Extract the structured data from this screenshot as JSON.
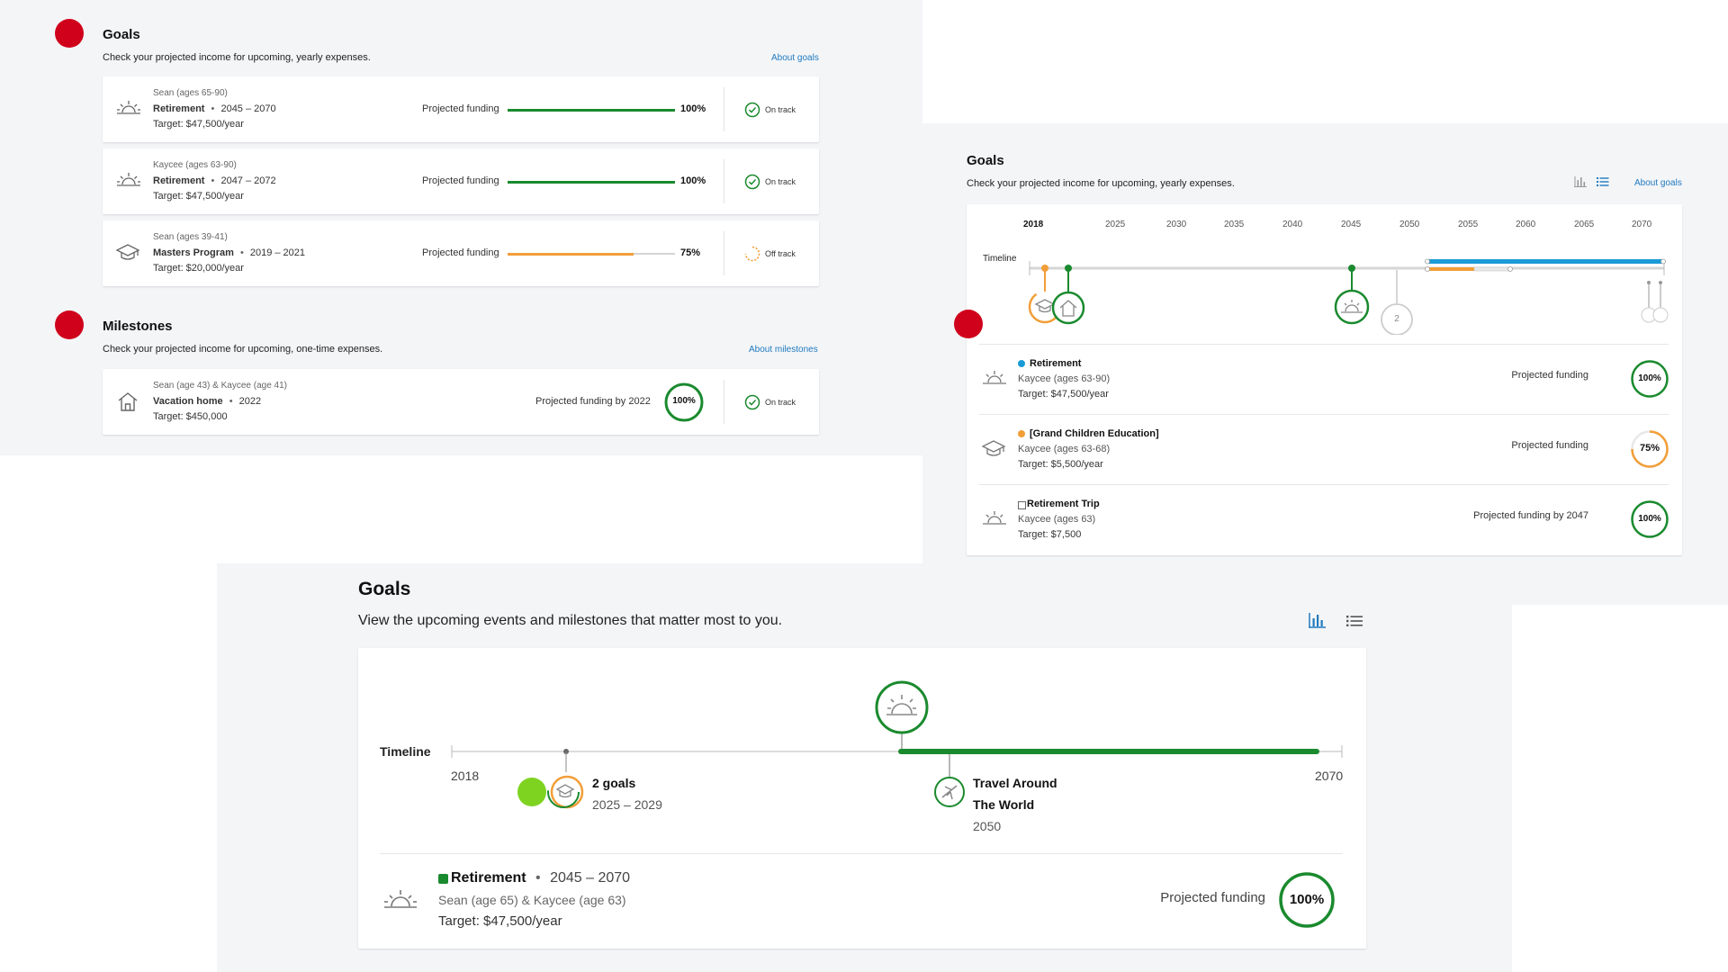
{
  "colors": {
    "green": "#1a8a2e",
    "orange": "#f29e38",
    "blue": "#1a9ad6",
    "red": "#d0021b",
    "link": "#1f7ac0",
    "lime": "#7ed321"
  },
  "panel1": {
    "goals_title": "Goals",
    "goals_subtitle": "Check your projected income for upcoming, yearly expenses.",
    "about_goals": "About goals",
    "goals": [
      {
        "person": "Sean (ages 65-90)",
        "name": "Retirement",
        "years": "2045 – 2070",
        "target": "Target: $47,500/year",
        "funding_label": "Projected funding",
        "progress": 100,
        "pct": "100%",
        "status": "On track",
        "icon": "sunrise-icon"
      },
      {
        "person": "Kaycee (ages 63-90)",
        "name": "Retirement",
        "years": "2047 – 2072",
        "target": "Target: $47,500/year",
        "funding_label": "Projected funding",
        "progress": 100,
        "pct": "100%",
        "status": "On track",
        "icon": "sunrise-icon"
      },
      {
        "person": "Sean (ages 39-41)",
        "name": "Masters Program",
        "years": "2019 – 2021",
        "target": "Target: $20,000/year",
        "funding_label": "Projected funding",
        "progress": 75,
        "pct": "75%",
        "status": "Off track",
        "icon": "graduation-cap-icon"
      }
    ],
    "milestones_title": "Milestones",
    "milestones_subtitle": "Check your projected income for upcoming, one-time expenses.",
    "about_milestones": "About milestones",
    "milestone": {
      "person": "Sean (age 43) & Kaycee (age 41)",
      "name": "Vacation home",
      "years": "2022",
      "target": "Target: $450,000",
      "funding_label": "Projected funding by 2022",
      "pct": "100%",
      "status": "On track",
      "icon": "house-icon"
    }
  },
  "panel2": {
    "title": "Goals",
    "subtitle": "Check your projected income for upcoming, yearly expenses.",
    "about_goals": "About goals",
    "timeline_label": "Timeline",
    "years": [
      "2018",
      "2025",
      "2030",
      "2035",
      "2040",
      "2045",
      "2050",
      "2055",
      "2060",
      "2065",
      "2070"
    ],
    "cluster_count": "2",
    "goals": [
      {
        "name": "Retirement",
        "person": "Kaycee (ages 63-90)",
        "target": "Target: $47,500/year",
        "funding_label": "Projected funding",
        "pct": "100%",
        "progress": 100,
        "marker_color": "#1a9ad6",
        "icon": "sunrise-icon"
      },
      {
        "name": "[Grand Children Education]",
        "person": "Kaycee (ages 63-68)",
        "target": "Target: $5,500/year",
        "funding_label": "Projected funding",
        "pct": "75%",
        "progress": 75,
        "marker_color": "#f29e38",
        "icon": "graduation-cap-icon"
      },
      {
        "name": "Retirement Trip",
        "person": "Kaycee (ages 63)",
        "target": "Target: $7,500",
        "funding_label": "Projected funding by 2047",
        "pct": "100%",
        "progress": 100,
        "marker_color": "#ffffff",
        "icon": "sunrise-icon"
      }
    ]
  },
  "panel3": {
    "title": "Goals",
    "subtitle": "View the upcoming events and milestones that matter most to you.",
    "timeline_label": "Timeline",
    "start_year": "2018",
    "end_year": "2070",
    "cluster_title": "2 goals",
    "cluster_years": "2025 – 2029",
    "event_title_line1": "Travel Around",
    "event_title_line2": "The World",
    "event_year": "2050",
    "goal": {
      "name": "Retirement",
      "years": "2045 – 2070",
      "person": "Sean (age 65) & Kaycee (age 63)",
      "target": "Target: $47,500/year",
      "funding_label": "Projected funding",
      "pct": "100%",
      "progress": 100
    }
  }
}
